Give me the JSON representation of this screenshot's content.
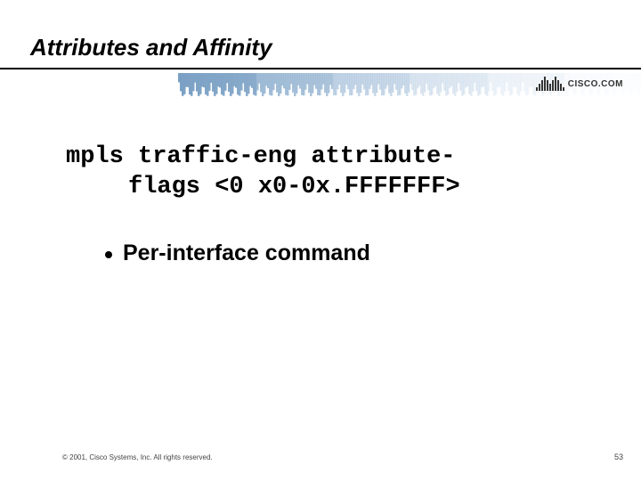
{
  "title": "Attributes and Affinity",
  "code": {
    "line1": "mpls traffic-eng attribute-",
    "line2": "flags <0 x0-0x.FFFFFFF>"
  },
  "bullet": {
    "text": "Per-interface command",
    "dot_color": "#000000"
  },
  "footer": {
    "copyright": "© 2001, Cisco Systems, Inc. All rights reserved.",
    "page": "53"
  },
  "logo": {
    "text": "CISCO.COM",
    "bar_heights": [
      4,
      8,
      12,
      16,
      12,
      8,
      12,
      16,
      12,
      8,
      4
    ],
    "bar_color": "#333333",
    "text_color": "#333333"
  },
  "gradient": {
    "stripe_colors": [
      "#7aa0c4",
      "#8fb0cf",
      "#a6c0da",
      "#bcd0e4",
      "#d2e0ee",
      "#e8eff8",
      "#ffffff"
    ],
    "stripe_width": 1
  },
  "style": {
    "title_fontsize": 26,
    "code_fontsize": 27,
    "bullet_fontsize": 25,
    "background": "#ffffff",
    "underline_color": "#000000"
  }
}
